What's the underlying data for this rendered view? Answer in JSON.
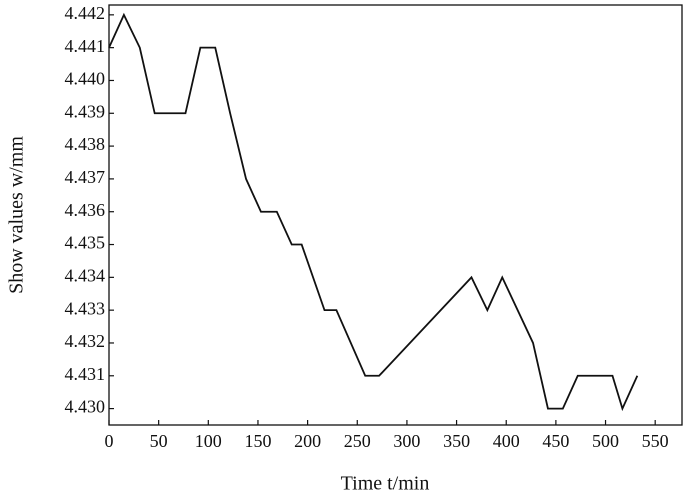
{
  "chart_data": {
    "type": "line",
    "x_label": "Time t/min",
    "y_label": "Show values w/mm",
    "x": [
      0,
      15,
      31,
      46,
      77,
      92,
      107,
      122,
      138,
      153,
      169,
      184,
      194,
      217,
      229,
      258,
      272,
      365,
      381,
      396,
      427,
      442,
      457,
      472,
      507,
      517,
      532
    ],
    "series": [
      {
        "color": "#111111",
        "values": [
          4.441,
          4.442,
          4.441,
          4.439,
          4.439,
          4.441,
          4.441,
          4.439,
          4.437,
          4.436,
          4.436,
          4.435,
          4.435,
          4.433,
          4.433,
          4.431,
          4.431,
          4.434,
          4.433,
          4.434,
          4.432,
          4.43,
          4.43,
          4.431,
          4.431,
          4.43,
          4.431
        ]
      }
    ],
    "xlim": [
      0,
      577
    ],
    "xticks": [
      0,
      50,
      100,
      150,
      200,
      250,
      300,
      350,
      400,
      450,
      500,
      550
    ],
    "ylim": [
      4.4295,
      4.4423
    ],
    "yticks": [
      {
        "value": 4.43,
        "label": "4.430"
      },
      4.431,
      4.432,
      4.433,
      4.434,
      4.435,
      4.436,
      4.437,
      4.438,
      4.439,
      {
        "value": 4.44,
        "label": "4.440"
      },
      4.441,
      4.442
    ]
  }
}
